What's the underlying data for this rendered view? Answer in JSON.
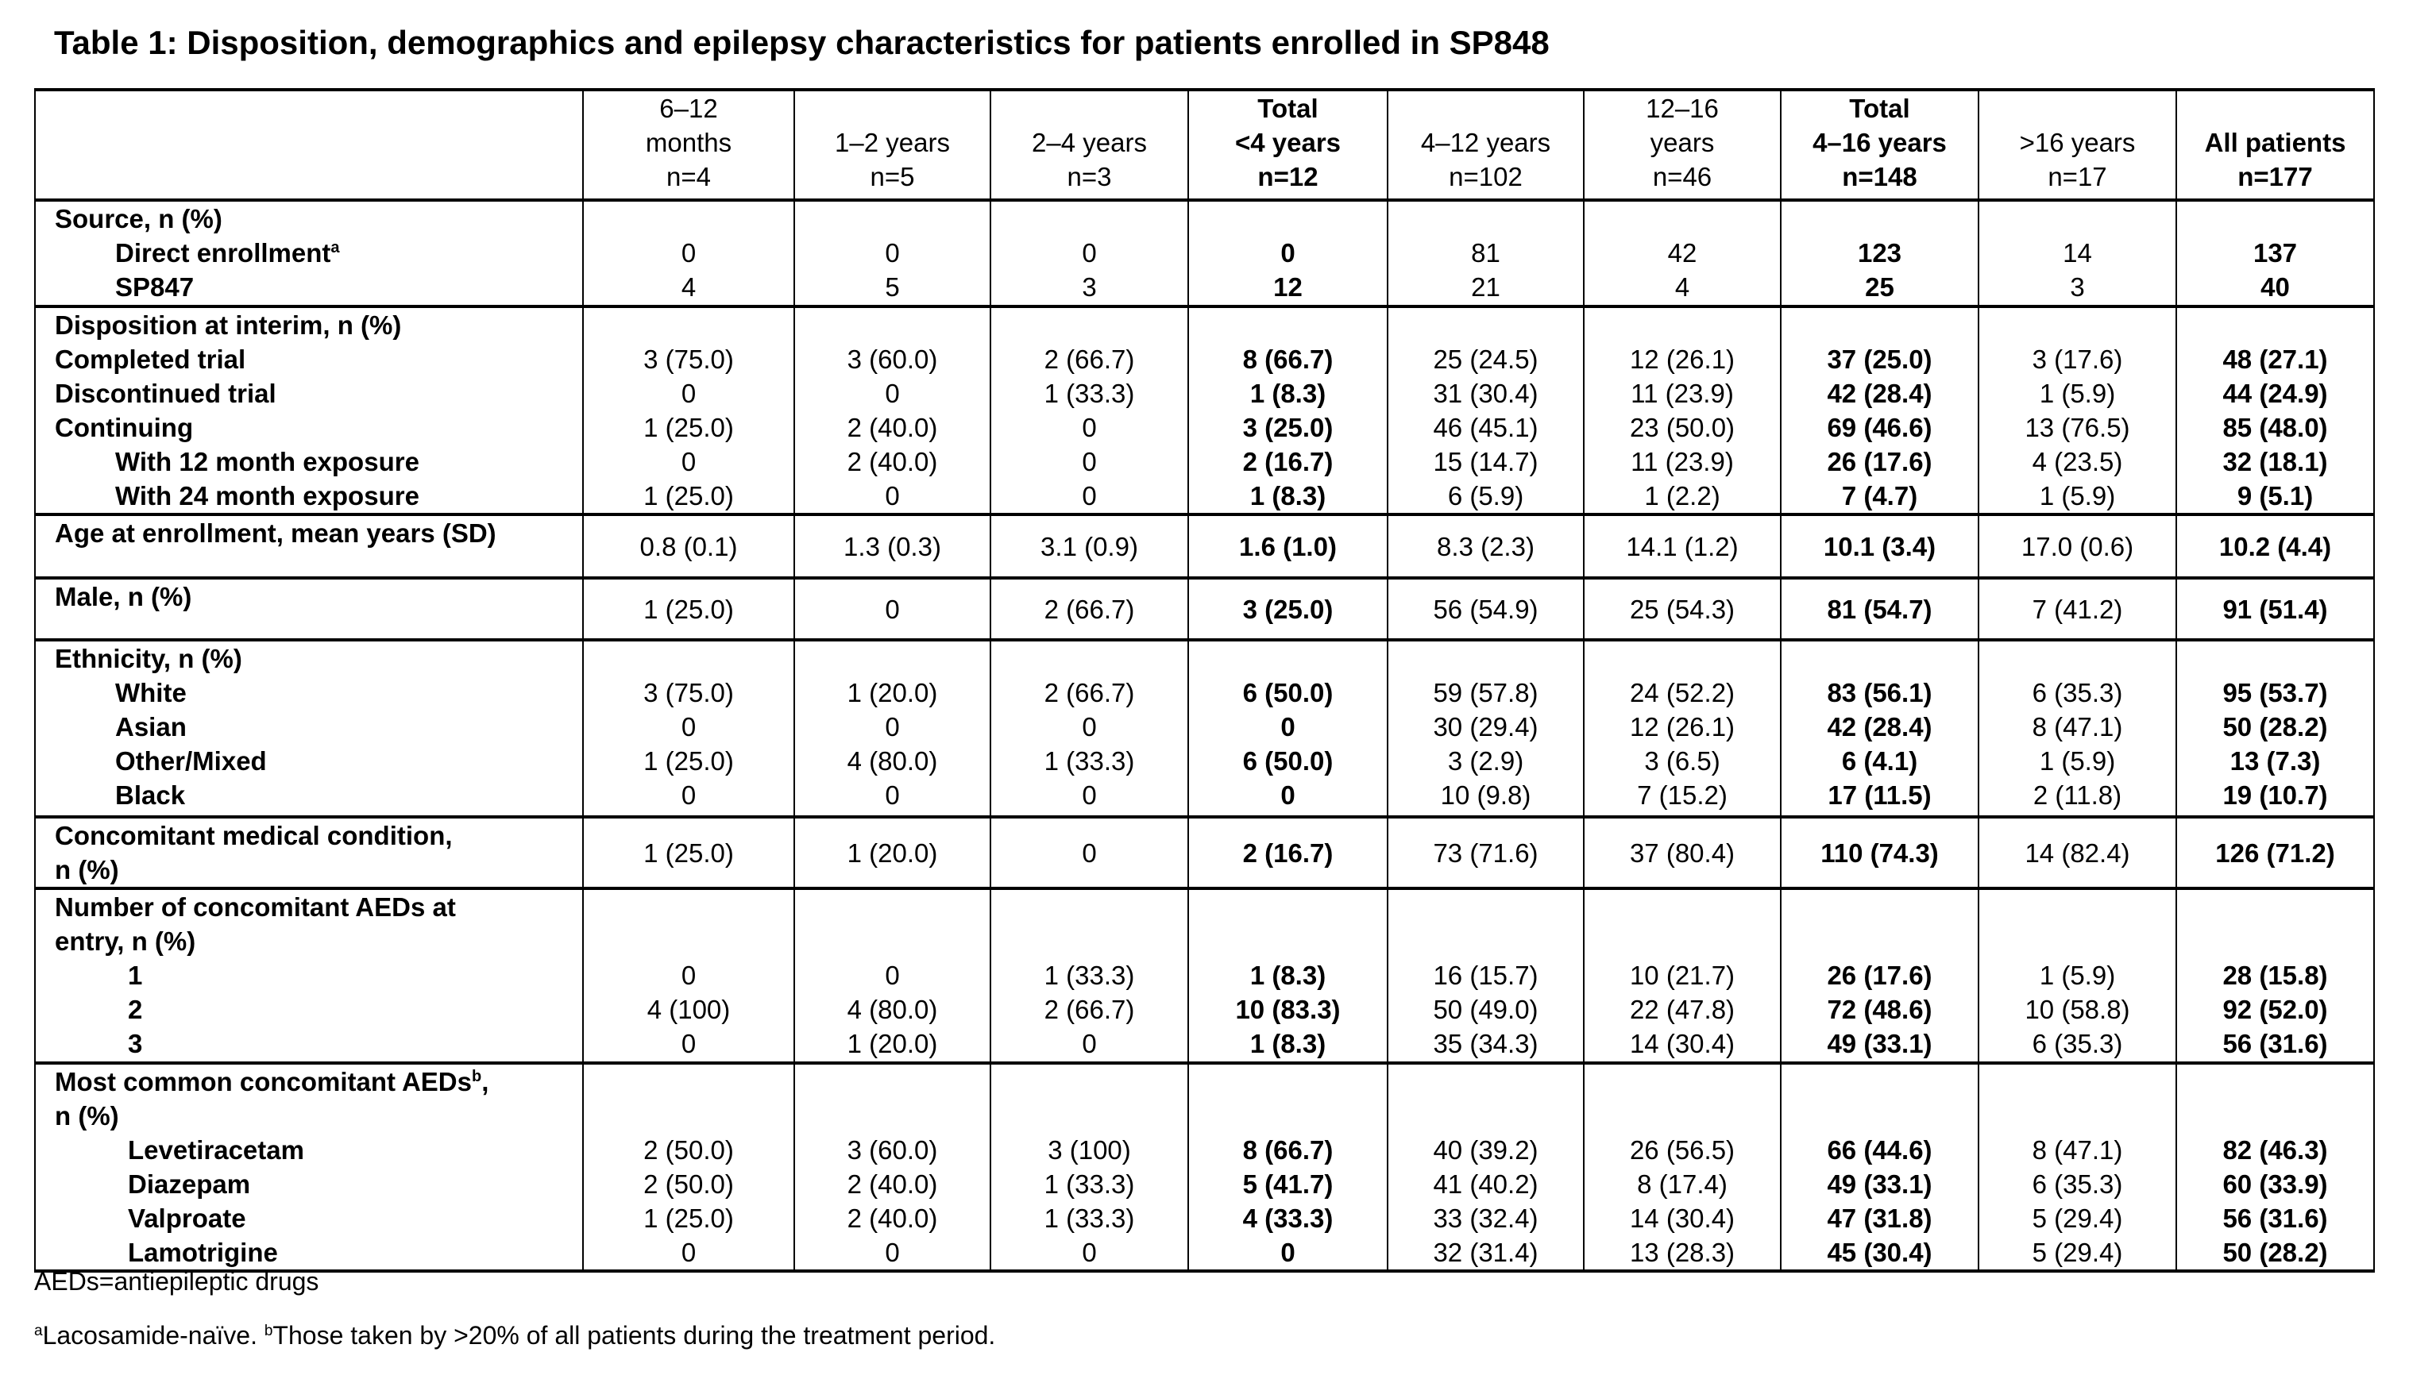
{
  "title": "Table 1: Disposition, demographics and epilepsy characteristics for patients enrolled in SP848",
  "columns": [
    {
      "lines": [
        "6–12",
        "months",
        "n=4"
      ]
    },
    {
      "lines": [
        "1–2 years",
        "n=5"
      ]
    },
    {
      "lines": [
        "2–4 years",
        "n=3"
      ]
    },
    {
      "lines": [
        "Total",
        "<4 years",
        "n=12"
      ]
    },
    {
      "lines": [
        "4–12 years",
        "n=102"
      ]
    },
    {
      "lines": [
        "12–16",
        "years",
        "n=46"
      ]
    },
    {
      "lines": [
        "Total",
        "4–16 years",
        "n=148"
      ]
    },
    {
      "lines": [
        ">16 years",
        "n=17"
      ]
    },
    {
      "lines": [
        "All patients",
        "n=177"
      ]
    }
  ],
  "groups": [
    {
      "lines": [
        {
          "label": "Source, n (%)",
          "level": 0,
          "values": null
        },
        {
          "label": "Direct enrollment",
          "sup": "a",
          "level": 1,
          "values": [
            "0",
            "0",
            "0",
            "0",
            "81",
            "42",
            "123",
            "14",
            "137"
          ]
        },
        {
          "label": "SP847",
          "level": 1,
          "values": [
            "4",
            "5",
            "3",
            "12",
            "21",
            "4",
            "25",
            "3",
            "40"
          ]
        }
      ]
    },
    {
      "lines": [
        {
          "label": "Disposition at interim, n (%)",
          "level": 0,
          "values": null
        },
        {
          "label": "Completed trial",
          "level": 0,
          "values": [
            "3 (75.0)",
            "3 (60.0)",
            "2 (66.7)",
            "8 (66.7)",
            "25 (24.5)",
            "12 (26.1)",
            "37 (25.0)",
            "3 (17.6)",
            "48 (27.1)"
          ]
        },
        {
          "label": "Discontinued trial",
          "level": 0,
          "values": [
            "0",
            "0",
            "1 (33.3)",
            "1 (8.3)",
            "31 (30.4)",
            "11 (23.9)",
            "42 (28.4)",
            "1 (5.9)",
            "44 (24.9)"
          ]
        },
        {
          "label": "Continuing",
          "level": 0,
          "values": [
            "1 (25.0)",
            "2 (40.0)",
            "0",
            "3 (25.0)",
            "46 (45.1)",
            "23 (50.0)",
            "69 (46.6)",
            "13 (76.5)",
            "85 (48.0)"
          ]
        },
        {
          "label": "With 12 month exposure",
          "level": 1,
          "values": [
            "0",
            "2 (40.0)",
            "0",
            "2 (16.7)",
            "15 (14.7)",
            "11 (23.9)",
            "26 (17.6)",
            "4 (23.5)",
            "32 (18.1)"
          ]
        },
        {
          "label": "With 24 month exposure",
          "level": 1,
          "values": [
            "1 (25.0)",
            "0",
            "0",
            "1 (8.3)",
            "6 (5.9)",
            "1 (2.2)",
            "7 (4.7)",
            "1 (5.9)",
            "9 (5.1)"
          ]
        }
      ]
    },
    {
      "lines": [
        {
          "label": "Age at enrollment, mean years (SD)",
          "level": 0,
          "values": [
            "0.8 (0.1)",
            "1.3 (0.3)",
            "3.1 (0.9)",
            "1.6 (1.0)",
            "8.3 (2.3)",
            "14.1 (1.2)",
            "10.1 (3.4)",
            "17.0 (0.6)",
            "10.2 (4.4)"
          ]
        }
      ]
    },
    {
      "lines": [
        {
          "label": "Male, n (%)",
          "level": 0,
          "values": [
            "1 (25.0)",
            "0",
            "2 (66.7)",
            "3 (25.0)",
            "56 (54.9)",
            "25 (54.3)",
            "81 (54.7)",
            "7 (41.2)",
            "91 (51.4)"
          ]
        }
      ]
    },
    {
      "lines": [
        {
          "label": "Ethnicity, n (%)",
          "level": 0,
          "values": null
        },
        {
          "label": "White",
          "level": 1,
          "values": [
            "3 (75.0)",
            "1 (20.0)",
            "2 (66.7)",
            "6 (50.0)",
            "59 (57.8)",
            "24 (52.2)",
            "83 (56.1)",
            "6 (35.3)",
            "95 (53.7)"
          ]
        },
        {
          "label": "Asian",
          "level": 1,
          "values": [
            "0",
            "0",
            "0",
            "0",
            "30 (29.4)",
            "12 (26.1)",
            "42 (28.4)",
            "8 (47.1)",
            "50 (28.2)"
          ]
        },
        {
          "label": "Other/Mixed",
          "level": 1,
          "values": [
            "1 (25.0)",
            "4 (80.0)",
            "1 (33.3)",
            "6 (50.0)",
            "3 (2.9)",
            "3 (6.5)",
            "6 (4.1)",
            "1 (5.9)",
            "13 (7.3)"
          ]
        },
        {
          "label": "Black",
          "level": 1,
          "values": [
            "0",
            "0",
            "0",
            "0",
            "10 (9.8)",
            "7 (15.2)",
            "17 (11.5)",
            "2 (11.8)",
            "19 (10.7)"
          ]
        }
      ]
    },
    {
      "lines": [
        {
          "label": "Concomitant medical condition,",
          "level": 0,
          "values": [
            "1 (25.0)",
            "1 (20.0)",
            "0",
            "2 (16.7)",
            "73 (71.6)",
            "37 (80.4)",
            "110 (74.3)",
            "14 (82.4)",
            "126 (71.2)"
          ]
        },
        {
          "label": " n (%)",
          "level": 0,
          "values": null
        }
      ]
    },
    {
      "lines": [
        {
          "label": "Number of concomitant AEDs at",
          "level": 0,
          "values": null
        },
        {
          "label": "entry, n (%)",
          "level": 0,
          "values": null
        },
        {
          "label": "1",
          "level": 2,
          "values": [
            "0",
            "0",
            "1 (33.3)",
            "1 (8.3)",
            "16 (15.7)",
            "10 (21.7)",
            "26 (17.6)",
            "1 (5.9)",
            "28 (15.8)"
          ]
        },
        {
          "label": "2",
          "level": 2,
          "values": [
            "4 (100)",
            "4 (80.0)",
            "2 (66.7)",
            "10 (83.3)",
            "50 (49.0)",
            "22 (47.8)",
            "72 (48.6)",
            "10 (58.8)",
            "92 (52.0)"
          ]
        },
        {
          "label": "3",
          "level": 2,
          "values": [
            "0",
            "1 (20.0)",
            "0",
            "1 (8.3)",
            "35 (34.3)",
            "14 (30.4)",
            "49 (33.1)",
            "6 (35.3)",
            "56 (31.6)"
          ]
        }
      ]
    },
    {
      "lines": [
        {
          "label": "Most common concomitant AEDs",
          "sup": "b",
          "suffix": ",",
          "level": 0,
          "values": null
        },
        {
          "label": "n (%)",
          "level": 0,
          "values": null
        },
        {
          "label": "Levetiracetam",
          "level": 2,
          "values": [
            "2 (50.0)",
            "3 (60.0)",
            "3 (100)",
            "8 (66.7)",
            "40 (39.2)",
            "26 (56.5)",
            "66 (44.6)",
            "8 (47.1)",
            "82 (46.3)"
          ]
        },
        {
          "label": "Diazepam",
          "level": 2,
          "values": [
            "2 (50.0)",
            "2 (40.0)",
            "1 (33.3)",
            "5 (41.7)",
            "41 (40.2)",
            "8 (17.4)",
            "49 (33.1)",
            "6 (35.3)",
            "60 (33.9)"
          ]
        },
        {
          "label": "Valproate",
          "level": 2,
          "values": [
            "1 (25.0)",
            "2 (40.0)",
            "1 (33.3)",
            "4 (33.3)",
            "33 (32.4)",
            "14 (30.4)",
            "47 (31.8)",
            "5 (29.4)",
            "56 (31.6)"
          ]
        },
        {
          "label": "Lamotrigine",
          "level": 2,
          "values": [
            "0",
            "0",
            "0",
            "0",
            "32 (31.4)",
            "13 (28.3)",
            "45 (30.4)",
            "5 (29.4)",
            "50 (28.2)"
          ]
        }
      ]
    }
  ],
  "footnotes": {
    "abbrev": "AEDs=antiepileptic drugs",
    "note_a_mark": "a",
    "note_a": "Lacosamide-naïve. ",
    "note_b_mark": "b",
    "note_b": "Those taken by >20% of all patients during the treatment period."
  }
}
